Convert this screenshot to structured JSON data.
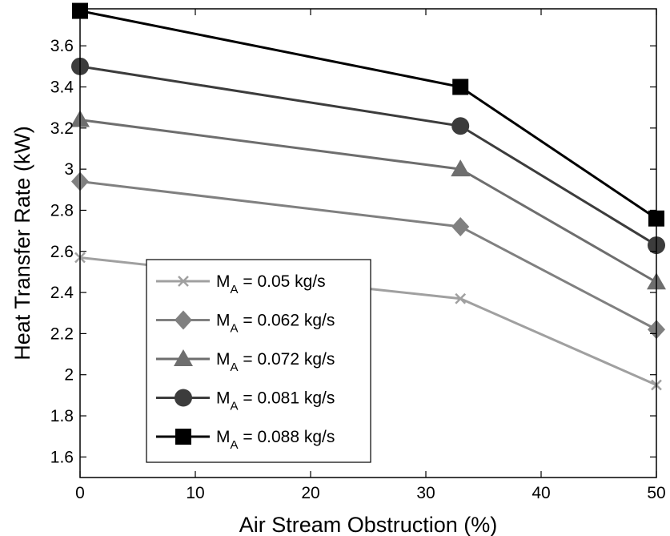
{
  "chart_data": {
    "type": "line",
    "title": "",
    "xlabel": "Air Stream Obstruction (%)",
    "ylabel": "Heat Transfer Rate (kW)",
    "xlim": [
      0,
      50
    ],
    "ylim": [
      1.5,
      3.78
    ],
    "xticks": [
      0,
      10,
      20,
      30,
      40,
      50
    ],
    "yticks": [
      1.6,
      1.8,
      2,
      2.2,
      2.4,
      2.6,
      2.8,
      3,
      3.2,
      3.4,
      3.6
    ],
    "x": [
      0,
      33,
      50
    ],
    "grid": false,
    "legend_position": "lower-left",
    "series": [
      {
        "name_main": "M",
        "name_sub": "A",
        "name_rest": " = 0.05 kg/s",
        "marker": "x",
        "color": "#a0a0a0",
        "values": [
          2.57,
          2.37,
          1.95
        ]
      },
      {
        "name_main": "M",
        "name_sub": "A",
        "name_rest": " = 0.062 kg/s",
        "marker": "diamond",
        "color": "#808080",
        "values": [
          2.94,
          2.72,
          2.22
        ]
      },
      {
        "name_main": "M",
        "name_sub": "A",
        "name_rest": " = 0.072 kg/s",
        "marker": "triangle",
        "color": "#6e6e6e",
        "values": [
          3.24,
          3.0,
          2.45
        ]
      },
      {
        "name_main": "M",
        "name_sub": "A",
        "name_rest": " = 0.081 kg/s",
        "marker": "circle",
        "color": "#3c3c3c",
        "values": [
          3.5,
          3.21,
          2.63
        ]
      },
      {
        "name_main": "M",
        "name_sub": "A",
        "name_rest": " = 0.088 kg/s",
        "marker": "square",
        "color": "#000000",
        "values": [
          3.77,
          3.4,
          2.76
        ]
      }
    ]
  }
}
